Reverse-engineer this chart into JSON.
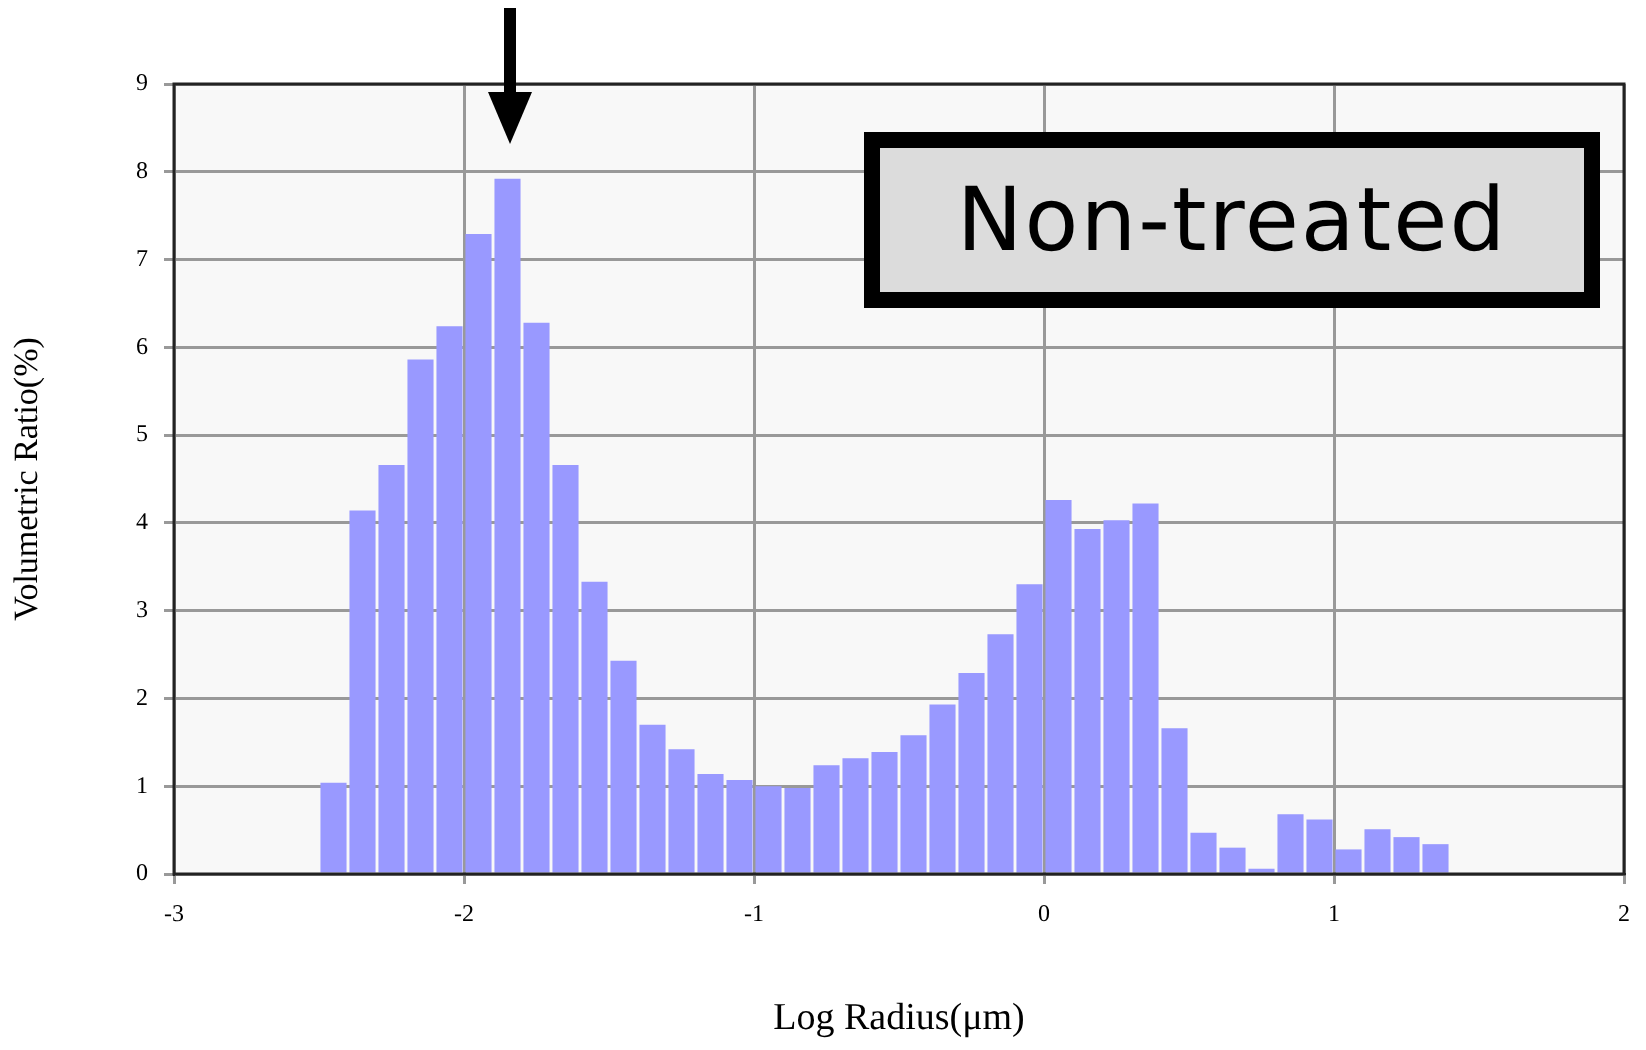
{
  "chart_data": {
    "type": "histogram",
    "xlabel": "Log Radius(μm)",
    "ylabel": "Volumetric Ratio(%)",
    "annotations": [
      "Non-treated"
    ],
    "bins": [
      -2.5,
      -2.4,
      -2.3,
      -2.2,
      -2.1,
      -2.0,
      -1.9,
      -1.8,
      -1.7,
      -1.6,
      -1.5,
      -1.4,
      -1.3,
      -1.2,
      -1.1,
      -1.0,
      -0.9,
      -0.8,
      -0.7,
      -0.6,
      -0.5,
      -0.4,
      -0.3,
      -0.2,
      -0.1,
      0.0,
      0.1,
      0.2,
      0.3,
      0.4,
      0.5,
      0.6,
      0.7,
      0.8,
      0.9,
      1.0,
      1.1,
      1.2,
      1.3,
      1.4
    ],
    "values": [
      1.04,
      4.14,
      4.66,
      5.86,
      6.24,
      7.29,
      7.92,
      6.28,
      4.66,
      3.33,
      2.43,
      1.7,
      1.42,
      1.14,
      1.07,
      1.0,
      0.98,
      1.24,
      1.32,
      1.39,
      1.58,
      1.93,
      2.29,
      2.73,
      3.3,
      4.26,
      3.93,
      4.03,
      4.22,
      1.66,
      0.47,
      0.3,
      0.06,
      0.68,
      0.62,
      0.28,
      0.51,
      0.42,
      0.34
    ],
    "color": "#9999ff",
    "xlim": [
      -3,
      2
    ],
    "xticks": [
      -3,
      -2,
      -1,
      0,
      1,
      2
    ],
    "ylim": [
      0,
      9
    ],
    "yticks": [
      0,
      1,
      2,
      3,
      4,
      5,
      6,
      7,
      8,
      9
    ],
    "grid": true
  }
}
